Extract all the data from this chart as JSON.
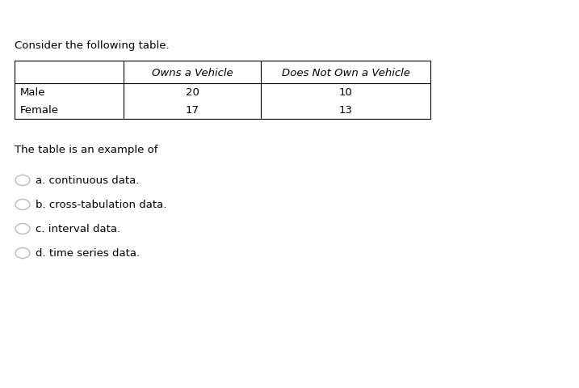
{
  "consider_text": "Consider the following table.",
  "table_header": [
    "",
    "Owns a Vehicle",
    "Does Not Own a Vehicle"
  ],
  "table_rows": [
    [
      "Male",
      "20",
      "10"
    ],
    [
      "Female",
      "17",
      "13"
    ]
  ],
  "question_text": "The table is an example of",
  "options": [
    "a. continuous data.",
    "b. cross-tabulation data.",
    "c. interval data.",
    "d. time series data."
  ],
  "bg_color": "#ffffff",
  "text_color": "#000000",
  "border_color": "#000000",
  "radio_color": "#bbbbbb",
  "font_size": 9.5,
  "italic_font_size": 9.5,
  "fig_width": 7.17,
  "fig_height": 4.81,
  "dpi": 100
}
